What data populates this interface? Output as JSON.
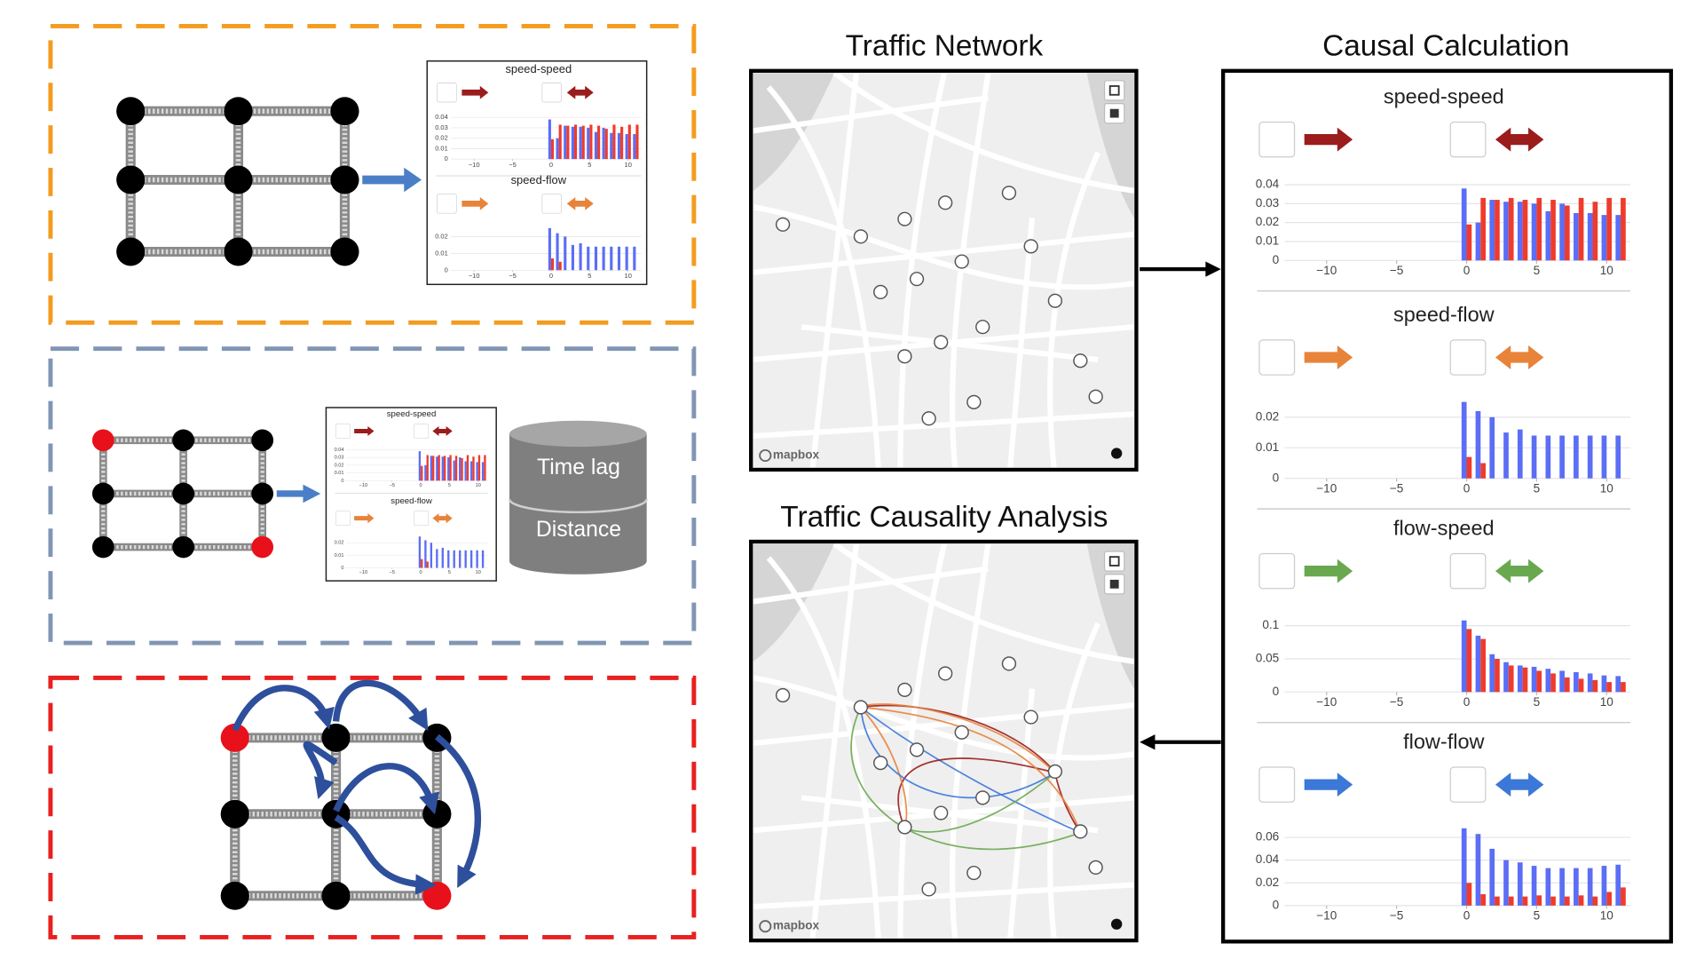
{
  "maps": [
    {
      "title": "Traffic Network",
      "attribution": "mapbox"
    },
    {
      "title": "Traffic Causality Analysis",
      "attribution": "mapbox"
    }
  ],
  "causal_panel": {
    "title": "Causal Calculation"
  },
  "storage": {
    "layers": [
      "Time lag",
      "Distance"
    ]
  },
  "charts": [
    {
      "title": "speed-speed",
      "arrow_color": "#9b1c1c",
      "xlim": [
        -13,
        11.7
      ],
      "xticks": [
        {
          "value": -10,
          "label": "−10"
        },
        {
          "value": -5,
          "label": "−5"
        },
        0,
        5,
        10
      ],
      "ylim": [
        0,
        0.042
      ],
      "yticks": [
        0,
        0.01,
        0.02,
        0.03,
        0.04
      ],
      "lags": [
        0,
        1,
        2,
        3,
        4,
        5,
        6,
        7,
        8,
        9,
        10,
        11
      ],
      "series": [
        {
          "color": "#5b6ef5",
          "values": [
            0.038,
            0.02,
            0.032,
            0.031,
            0.031,
            0.03,
            0.026,
            0.03,
            0.025,
            0.025,
            0.024,
            0.024
          ]
        },
        {
          "color": "#ef3b2c",
          "values": [
            0.019,
            0.033,
            0.032,
            0.033,
            0.032,
            0.033,
            0.032,
            0.029,
            0.033,
            0.031,
            0.033,
            0.033
          ]
        }
      ]
    },
    {
      "title": "speed-flow",
      "arrow_color": "#e8833a",
      "xlim": [
        -13,
        11.7
      ],
      "xticks": [
        {
          "value": -10,
          "label": "−10"
        },
        {
          "value": -5,
          "label": "−5"
        },
        0,
        5,
        10
      ],
      "ylim": [
        0,
        0.026
      ],
      "yticks": [
        0,
        0.01,
        0.02
      ],
      "lags": [
        0,
        1,
        2,
        3,
        4,
        5,
        6,
        7,
        8,
        9,
        10,
        11
      ],
      "series": [
        {
          "color": "#5b6ef5",
          "values": [
            0.025,
            0.022,
            0.02,
            0.015,
            0.016,
            0.014,
            0.014,
            0.014,
            0.014,
            0.014,
            0.014,
            0.014
          ]
        },
        {
          "color": "#ef3b2c",
          "values": [
            0.007,
            0.005,
            0,
            0,
            0,
            0,
            0,
            0,
            0,
            0,
            0,
            0
          ]
        }
      ]
    },
    {
      "title": "flow-speed",
      "arrow_color": "#6aa84f",
      "xlim": [
        -13,
        11.7
      ],
      "xticks": [
        {
          "value": -10,
          "label": "−10"
        },
        {
          "value": -5,
          "label": "−5"
        },
        0,
        5,
        10
      ],
      "ylim": [
        0,
        0.12
      ],
      "yticks": [
        0,
        0.05,
        0.1
      ],
      "lags": [
        0,
        1,
        2,
        3,
        4,
        5,
        6,
        7,
        8,
        9,
        10,
        11
      ],
      "series": [
        {
          "color": "#5b6ef5",
          "values": [
            0.108,
            0.085,
            0.057,
            0.045,
            0.04,
            0.038,
            0.035,
            0.032,
            0.03,
            0.028,
            0.025,
            0.024
          ]
        },
        {
          "color": "#ef3b2c",
          "values": [
            0.095,
            0.08,
            0.05,
            0.04,
            0.037,
            0.032,
            0.028,
            0.022,
            0.02,
            0.018,
            0.015,
            0.015
          ]
        }
      ]
    },
    {
      "title": "flow-flow",
      "arrow_color": "#3b78d8",
      "xlim": [
        -13,
        11.7
      ],
      "xticks": [
        {
          "value": -10,
          "label": "−10"
        },
        {
          "value": -5,
          "label": "−5"
        },
        0,
        5,
        10
      ],
      "ylim": [
        0,
        0.07
      ],
      "yticks": [
        0,
        0.02,
        0.04,
        0.06
      ],
      "lags": [
        0,
        1,
        2,
        3,
        4,
        5,
        6,
        7,
        8,
        9,
        10,
        11
      ],
      "series": [
        {
          "color": "#5b6ef5",
          "values": [
            0.068,
            0.063,
            0.05,
            0.04,
            0.038,
            0.035,
            0.033,
            0.033,
            0.033,
            0.033,
            0.035,
            0.036
          ]
        },
        {
          "color": "#ef3b2c",
          "values": [
            0.02,
            0.01,
            0.008,
            0.008,
            0.008,
            0.009,
            0.008,
            0.008,
            0.009,
            0.008,
            0.012,
            0.016
          ]
        }
      ]
    }
  ]
}
